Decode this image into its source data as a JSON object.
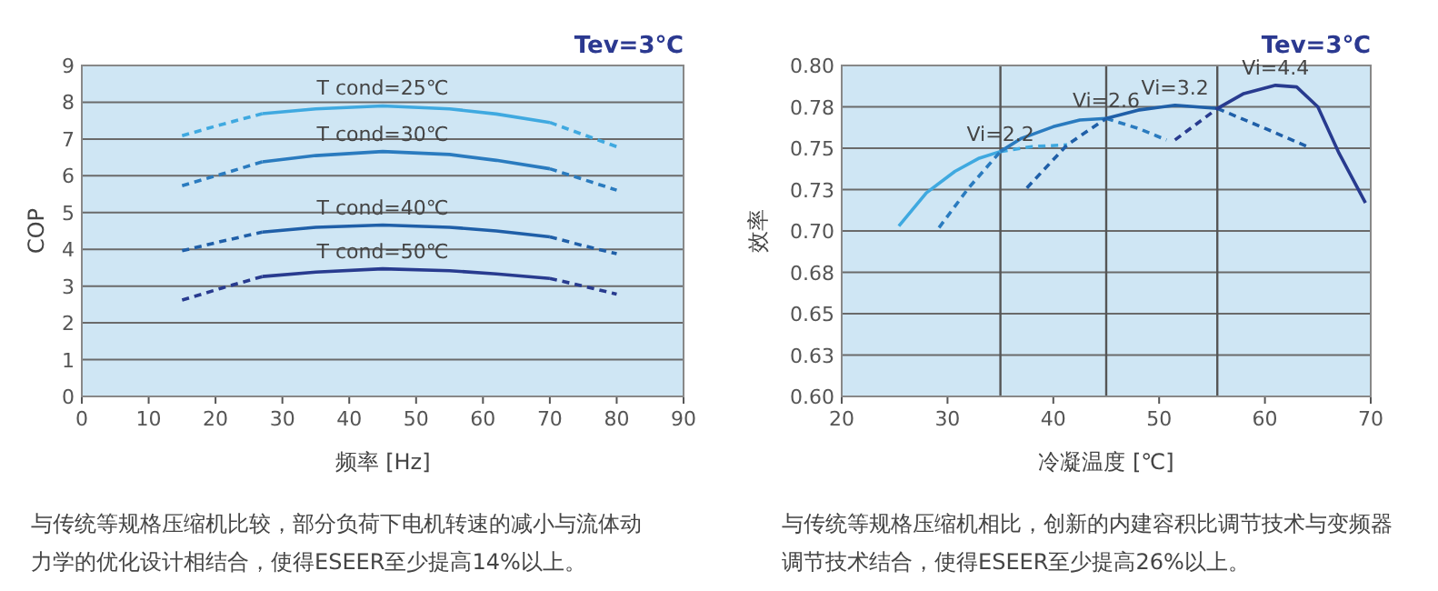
{
  "chart_data": [
    {
      "type": "line",
      "title": "Tev=3℃",
      "xlabel": "频率 [Hz]",
      "ylabel": "COP",
      "xlim": [
        0,
        90
      ],
      "xticks": [
        0,
        10,
        20,
        30,
        40,
        50,
        60,
        70,
        80,
        90
      ],
      "ylim": [
        0,
        9
      ],
      "yticks": [
        0,
        1,
        2,
        3,
        4,
        5,
        6,
        7,
        8,
        9
      ],
      "grid": "y",
      "series": [
        {
          "color": "#3fa9e0",
          "line_style": "dashed",
          "x": [
            15,
            20,
            27
          ],
          "values": [
            7.09,
            7.35,
            7.69
          ]
        },
        {
          "name": "T cond=25℃",
          "color": "#3fa9e0",
          "line_style": "solid",
          "x": [
            27,
            35,
            45,
            55,
            62,
            70
          ],
          "values": [
            7.69,
            7.82,
            7.9,
            7.82,
            7.68,
            7.45
          ]
        },
        {
          "color": "#3fa9e0",
          "line_style": "dashed",
          "x": [
            70,
            75,
            80
          ],
          "values": [
            7.45,
            7.12,
            6.79
          ]
        },
        {
          "color": "#2a7bbf",
          "line_style": "dashed",
          "x": [
            15,
            21,
            27
          ],
          "values": [
            5.73,
            6.05,
            6.38
          ]
        },
        {
          "name": "T cond=30℃",
          "color": "#2a7bbf",
          "line_style": "solid",
          "x": [
            27,
            35,
            45,
            55,
            62,
            70
          ],
          "values": [
            6.38,
            6.55,
            6.66,
            6.58,
            6.42,
            6.19
          ]
        },
        {
          "color": "#2a7bbf",
          "line_style": "dashed",
          "x": [
            70,
            75,
            80
          ],
          "values": [
            6.19,
            5.9,
            5.61
          ]
        },
        {
          "color": "#1f5fa8",
          "line_style": "dashed",
          "x": [
            15,
            21,
            27
          ],
          "values": [
            3.96,
            4.22,
            4.47
          ]
        },
        {
          "name": "T cond=40℃",
          "color": "#1f5fa8",
          "line_style": "solid",
          "x": [
            27,
            35,
            45,
            55,
            62,
            70
          ],
          "values": [
            4.47,
            4.6,
            4.66,
            4.6,
            4.5,
            4.34
          ]
        },
        {
          "color": "#1f5fa8",
          "line_style": "dashed",
          "x": [
            70,
            75,
            80
          ],
          "values": [
            4.34,
            4.1,
            3.88
          ]
        },
        {
          "color": "#283b8f",
          "line_style": "dashed",
          "x": [
            15,
            21,
            27
          ],
          "values": [
            2.62,
            2.95,
            3.26
          ]
        },
        {
          "name": "T cond=50℃",
          "color": "#283b8f",
          "line_style": "solid",
          "x": [
            27,
            35,
            45,
            55,
            62,
            70
          ],
          "values": [
            3.26,
            3.38,
            3.47,
            3.42,
            3.33,
            3.21
          ]
        },
        {
          "color": "#283b8f",
          "line_style": "dashed",
          "x": [
            70,
            75,
            80
          ],
          "values": [
            3.21,
            3.0,
            2.78
          ]
        }
      ],
      "annotations": [
        "与传统等规格压缩机比较，部分负荷下电机转速的减小与流体动力学的优化设计相结合，使得ESEER至少提高14%以上。"
      ]
    },
    {
      "type": "line",
      "title": "Tev=3℃",
      "xlabel": "冷凝温度 [℃]",
      "ylabel": "效率",
      "xlim": [
        20,
        70
      ],
      "xticks": [
        20,
        30,
        40,
        50,
        60,
        70
      ],
      "ylim": [
        0.6,
        0.8
      ],
      "yticks": [
        {
          "value": 0.6,
          "label": "0.60"
        },
        {
          "value": 0.625,
          "label": "0.63"
        },
        {
          "value": 0.65,
          "label": "0.65"
        },
        {
          "value": 0.675,
          "label": "0.68"
        },
        {
          "value": 0.7,
          "label": "0.70"
        },
        {
          "value": 0.725,
          "label": "0.73"
        },
        {
          "value": 0.75,
          "label": "0.75"
        },
        {
          "value": 0.775,
          "label": "0.78"
        },
        {
          "value": 0.8,
          "label": "0.80"
        }
      ],
      "grid": "y",
      "ref_lines": [
        {
          "axis": "x",
          "value": 35,
          "color": "#555555"
        },
        {
          "axis": "x",
          "value": 45,
          "color": "#555555"
        },
        {
          "axis": "x",
          "value": 55.5,
          "color": "#555555"
        }
      ],
      "series": [
        {
          "name": "Vi=2.2",
          "color": "#3fa9e0",
          "line_style": "solid",
          "x": [
            25.4,
            28,
            30.7,
            33,
            35
          ],
          "values": [
            0.703,
            0.723,
            0.736,
            0.744,
            0.748
          ]
        },
        {
          "color": "#3fa9e0",
          "line_style": "dashed",
          "x": [
            35,
            38,
            41.3
          ],
          "values": [
            0.748,
            0.751,
            0.752
          ]
        },
        {
          "color": "#2a7bbf",
          "line_style": "dashed",
          "x": [
            29.2,
            32,
            35
          ],
          "values": [
            0.702,
            0.726,
            0.748
          ]
        },
        {
          "name": "Vi=2.6",
          "color": "#2a7bbf",
          "line_style": "solid",
          "x": [
            35,
            37,
            40,
            42.5,
            45
          ],
          "values": [
            0.748,
            0.756,
            0.763,
            0.767,
            0.768
          ]
        },
        {
          "color": "#2a7bbf",
          "line_style": "dashed",
          "x": [
            45,
            48,
            50.7
          ],
          "values": [
            0.768,
            0.762,
            0.755
          ]
        },
        {
          "color": "#1f5fa8",
          "line_style": "dashed",
          "x": [
            37.5,
            41.3,
            45
          ],
          "values": [
            0.726,
            0.752,
            0.768
          ]
        },
        {
          "name": "Vi=3.2",
          "color": "#1f5fa8",
          "line_style": "solid",
          "x": [
            45,
            48,
            51.5,
            55.5
          ],
          "values": [
            0.768,
            0.773,
            0.776,
            0.774
          ]
        },
        {
          "color": "#1f5fa8",
          "line_style": "dashed",
          "x": [
            55.5,
            60,
            64
          ],
          "values": [
            0.774,
            0.762,
            0.751
          ]
        },
        {
          "color": "#283b8f",
          "line_style": "dashed",
          "x": [
            51.5,
            55.5
          ],
          "values": [
            0.755,
            0.774
          ]
        },
        {
          "name": "Vi=4.4",
          "color": "#283b8f",
          "line_style": "solid",
          "x": [
            55.5,
            58,
            61,
            63,
            65,
            67,
            69.5
          ],
          "values": [
            0.774,
            0.783,
            0.788,
            0.787,
            0.775,
            0.747,
            0.717
          ]
        }
      ],
      "annotations": [
        "与传统等规格压缩机相比，创新的内建容积比调节技术与变频器调节技术结合，使得ESEER至少提高26%以上。"
      ]
    }
  ]
}
